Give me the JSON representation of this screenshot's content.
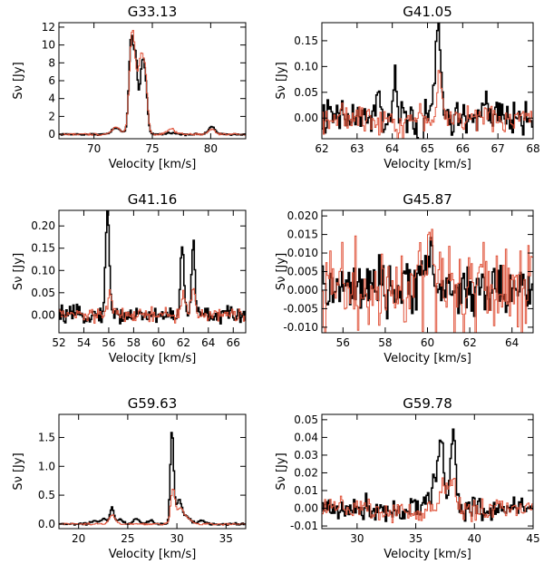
{
  "chart_data": [
    {
      "type": "line",
      "title": "G33.13",
      "xlabel": "Velocity [km/s]",
      "ylabel": "Sν [Jy]",
      "xlim": [
        67,
        83
      ],
      "ylim": [
        -0.5,
        12.5
      ],
      "xticks": [
        70,
        75,
        80
      ],
      "yticks": [
        0,
        2,
        4,
        6,
        8,
        10,
        12
      ],
      "xtick_labels": [
        "70",
        "75",
        "80"
      ],
      "ytick_labels": [
        "0",
        "2",
        "4",
        "6",
        "8",
        "10",
        "12"
      ],
      "series": [
        {
          "name": "black",
          "color": "#000000",
          "noise": 0.05,
          "peaks": [
            [
              71.9,
              0.7,
              0.35
            ],
            [
              73.2,
              10.8,
              0.2
            ],
            [
              73.6,
              7.3,
              0.15
            ],
            [
              74.1,
              6.4,
              0.2
            ],
            [
              74.4,
              4.7,
              0.2
            ],
            [
              76.6,
              0.2,
              0.3
            ],
            [
              80.1,
              0.9,
              0.25
            ]
          ]
        },
        {
          "name": "red",
          "color": "#e0533a",
          "noise": 0.06,
          "peaks": [
            [
              71.9,
              0.8,
              0.35
            ],
            [
              73.3,
              11.6,
              0.25
            ],
            [
              74.0,
              7.9,
              0.25
            ],
            [
              74.4,
              5.2,
              0.2
            ],
            [
              76.6,
              0.6,
              0.3
            ],
            [
              80.1,
              0.6,
              0.25
            ]
          ]
        }
      ]
    },
    {
      "type": "line",
      "title": "G41.05",
      "xlabel": "Velocity [km/s]",
      "ylabel": "Sν [Jy]",
      "xlim": [
        62,
        68
      ],
      "ylim": [
        -0.04,
        0.185
      ],
      "xticks": [
        62,
        63,
        64,
        65,
        66,
        67,
        68
      ],
      "yticks": [
        0.0,
        0.05,
        0.1,
        0.15
      ],
      "xtick_labels": [
        "62",
        "63",
        "64",
        "65",
        "66",
        "67",
        "68"
      ],
      "ytick_labels": [
        "0.00",
        "0.05",
        "0.10",
        "0.15"
      ],
      "series": [
        {
          "name": "black",
          "color": "#000000",
          "noise": 0.018,
          "peaks": [
            [
              63.6,
              0.03,
              0.06
            ],
            [
              64.1,
              0.06,
              0.06
            ],
            [
              64.8,
              -0.05,
              0.06
            ],
            [
              65.3,
              0.175,
              0.08
            ],
            [
              66.6,
              0.025,
              0.08
            ]
          ]
        },
        {
          "name": "red",
          "color": "#e0533a",
          "noise": 0.012,
          "peaks": [
            [
              65.35,
              0.1,
              0.05
            ],
            [
              64.2,
              -0.02,
              0.1
            ]
          ]
        }
      ]
    },
    {
      "type": "line",
      "title": "G41.16",
      "xlabel": "Velocity [km/s]",
      "ylabel": "Sν [Jy]",
      "xlim": [
        52,
        67
      ],
      "ylim": [
        -0.04,
        0.235
      ],
      "xticks": [
        52,
        54,
        56,
        58,
        60,
        62,
        64,
        66
      ],
      "yticks": [
        0.0,
        0.05,
        0.1,
        0.15,
        0.2
      ],
      "xtick_labels": [
        "52",
        "54",
        "56",
        "58",
        "60",
        "62",
        "64",
        "66"
      ],
      "ytick_labels": [
        "0.00",
        "0.05",
        "0.10",
        "0.15",
        "0.20"
      ],
      "series": [
        {
          "name": "black",
          "color": "#000000",
          "noise": 0.009,
          "peaks": [
            [
              55.9,
              0.22,
              0.16
            ],
            [
              61.9,
              0.16,
              0.13
            ],
            [
              62.8,
              0.17,
              0.13
            ]
          ]
        },
        {
          "name": "red",
          "color": "#e0533a",
          "noise": 0.008,
          "peaks": [
            [
              56.1,
              0.05,
              0.15
            ],
            [
              62.0,
              0.05,
              0.15
            ],
            [
              62.8,
              0.06,
              0.15
            ]
          ]
        }
      ]
    },
    {
      "type": "line",
      "title": "G45.87",
      "xlabel": "Velocity [km/s]",
      "ylabel": "Sν [Jy]",
      "xlim": [
        55,
        65
      ],
      "ylim": [
        -0.0115,
        0.0215
      ],
      "xticks": [
        56,
        58,
        60,
        62,
        64
      ],
      "yticks": [
        -0.01,
        -0.005,
        0.0,
        0.005,
        0.01,
        0.015,
        0.02
      ],
      "xtick_labels": [
        "56",
        "58",
        "60",
        "62",
        "64"
      ],
      "ytick_labels": [
        "-0.010",
        "-0.005",
        "0.000",
        "0.005",
        "0.010",
        "0.015",
        "0.020"
      ],
      "series": [
        {
          "name": "black",
          "color": "#000000",
          "noise": 0.0035,
          "peaks": [
            [
              59.9,
              0.009,
              0.3
            ]
          ]
        },
        {
          "name": "red",
          "color": "#e0533a",
          "noise": 0.0065,
          "peaks": [
            [
              60.1,
              0.014,
              0.12
            ]
          ]
        }
      ]
    },
    {
      "type": "line",
      "title": "G59.63",
      "xlabel": "Velocity [km/s]",
      "ylabel": "Sν [Jy]",
      "xlim": [
        18,
        37
      ],
      "ylim": [
        -0.08,
        1.9
      ],
      "xticks": [
        20,
        25,
        30,
        35
      ],
      "yticks": [
        0.0,
        0.5,
        1.0,
        1.5
      ],
      "xtick_labels": [
        "20",
        "25",
        "30",
        "35"
      ],
      "ytick_labels": [
        "0.0",
        "0.5",
        "1.0",
        "1.5"
      ],
      "series": [
        {
          "name": "black",
          "color": "#000000",
          "noise": 0.01,
          "peaks": [
            [
              21.6,
              0.05,
              0.3
            ],
            [
              22.6,
              0.1,
              0.3
            ],
            [
              23.4,
              0.28,
              0.2
            ],
            [
              24.2,
              0.08,
              0.3
            ],
            [
              25.9,
              0.1,
              0.3
            ],
            [
              27.3,
              0.06,
              0.3
            ],
            [
              29.5,
              1.6,
              0.17
            ],
            [
              30.2,
              0.4,
              0.3
            ],
            [
              31.0,
              0.12,
              0.4
            ],
            [
              32.5,
              0.06,
              0.4
            ]
          ]
        },
        {
          "name": "red",
          "color": "#e0533a",
          "noise": 0.008,
          "peaks": [
            [
              23.4,
              0.15,
              0.3
            ],
            [
              29.6,
              0.6,
              0.22
            ],
            [
              30.3,
              0.25,
              0.3
            ],
            [
              31.0,
              0.12,
              0.4
            ]
          ]
        }
      ]
    },
    {
      "type": "line",
      "title": "G59.78",
      "xlabel": "Velocity [km/s]",
      "ylabel": "Sν [Jy]",
      "xlim": [
        27,
        45
      ],
      "ylim": [
        -0.0115,
        0.053
      ],
      "xticks": [
        30,
        35,
        40,
        45
      ],
      "yticks": [
        -0.01,
        0.0,
        0.01,
        0.02,
        0.03,
        0.04,
        0.05
      ],
      "xtick_labels": [
        "30",
        "35",
        "40",
        "45"
      ],
      "ytick_labels": [
        "-0.01",
        "0.00",
        "0.01",
        "0.02",
        "0.03",
        "0.04",
        "0.05"
      ],
      "series": [
        {
          "name": "black",
          "color": "#000000",
          "noise": 0.0035,
          "peaks": [
            [
              36.6,
              0.015,
              0.4
            ],
            [
              37.2,
              0.032,
              0.25
            ],
            [
              38.2,
              0.047,
              0.2
            ]
          ]
        },
        {
          "name": "red",
          "color": "#e0533a",
          "noise": 0.003,
          "peaks": [
            [
              37.3,
              0.012,
              0.3
            ],
            [
              38.1,
              0.018,
              0.25
            ],
            [
              35.2,
              -0.008,
              0.3
            ]
          ]
        }
      ]
    }
  ]
}
